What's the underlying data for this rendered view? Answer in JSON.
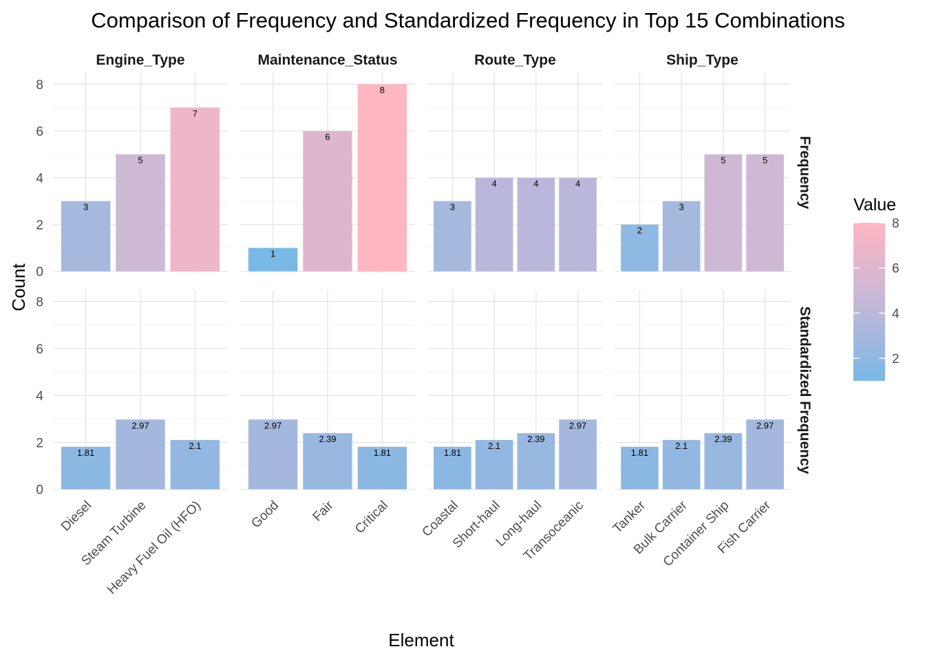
{
  "chart_data": {
    "type": "bar",
    "title": "Comparison of Frequency and Standardized Frequency in Top 15 Combinations",
    "xlabel": "Element",
    "ylabel": "Count",
    "ylim": [
      0,
      8
    ],
    "y_ticks": [
      0,
      2,
      4,
      6,
      8
    ],
    "grid": true,
    "legend": {
      "title": "Value",
      "position": "right",
      "ticks": [
        2,
        4,
        6,
        8
      ],
      "range": [
        1,
        8
      ],
      "low_color": "#7ab8e6",
      "mid_color": "#c5b8d8",
      "high_color": "#ffb6c1"
    },
    "facet_columns": [
      "Engine_Type",
      "Maintenance_Status",
      "Route_Type",
      "Ship_Type"
    ],
    "facet_rows": [
      "Frequency",
      "Standardized Frequency"
    ],
    "panels": [
      {
        "column": "Engine_Type",
        "categories": [
          "Diesel",
          "Steam Turbine",
          "Heavy Fuel Oil (HFO)"
        ],
        "Frequency": [
          3,
          5,
          7
        ],
        "Standardized Frequency": [
          1.81,
          2.97,
          2.1
        ]
      },
      {
        "column": "Maintenance_Status",
        "categories": [
          "Good",
          "Fair",
          "Critical"
        ],
        "Frequency": [
          1,
          6,
          8
        ],
        "Standardized Frequency": [
          2.97,
          2.39,
          1.81
        ]
      },
      {
        "column": "Route_Type",
        "categories": [
          "Coastal",
          "Short-haul",
          "Long-haul",
          "Transoceanic"
        ],
        "Frequency": [
          3,
          4,
          4,
          4
        ],
        "Standardized Frequency": [
          1.81,
          2.1,
          2.39,
          2.97
        ]
      },
      {
        "column": "Ship_Type",
        "categories": [
          "Tanker",
          "Bulk Carrier",
          "Container Ship",
          "Fish Carrier"
        ],
        "Frequency": [
          2,
          3,
          5,
          5
        ],
        "Standardized Frequency": [
          1.81,
          2.1,
          2.39,
          2.97
        ]
      }
    ]
  }
}
